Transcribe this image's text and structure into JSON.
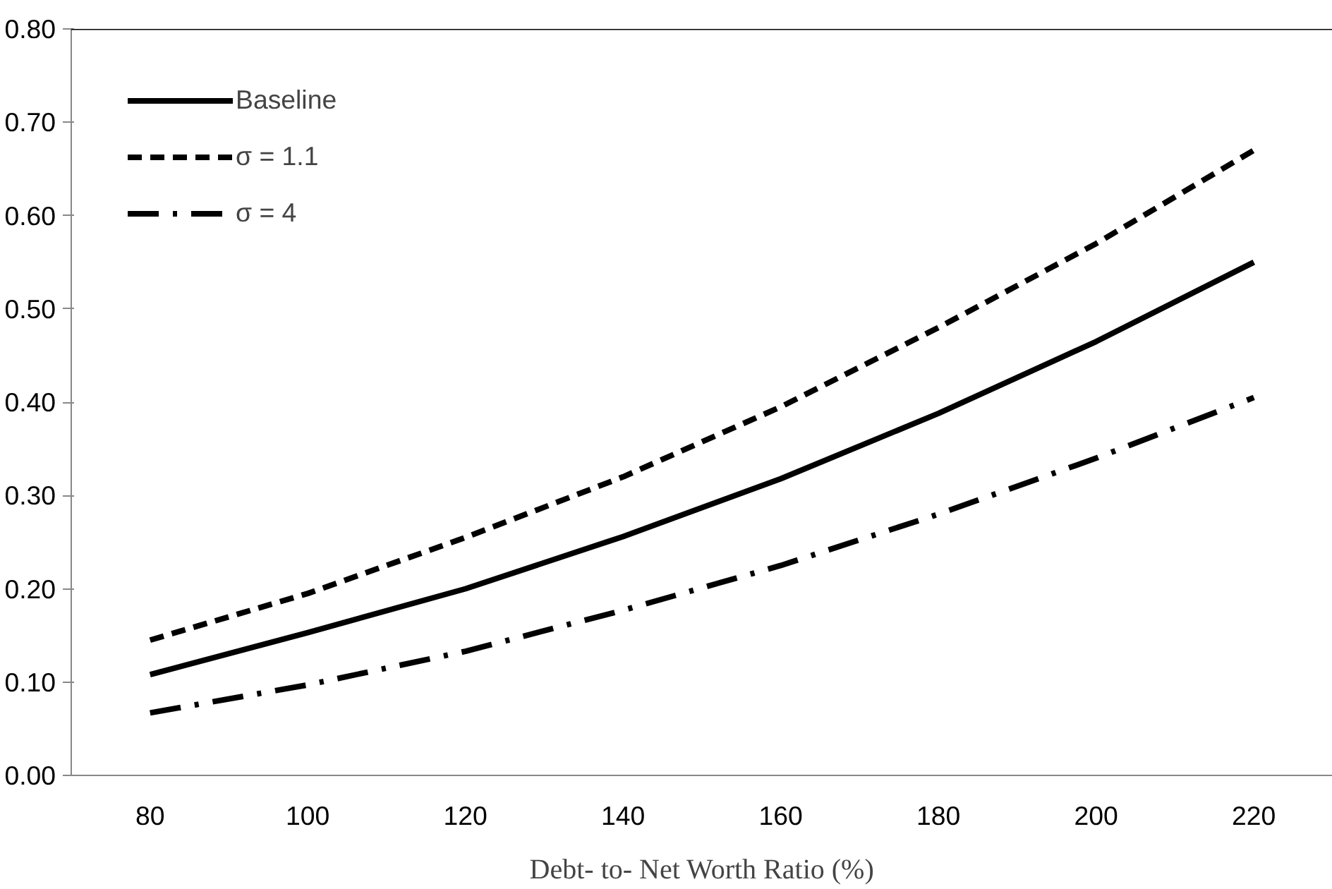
{
  "chart_data": {
    "type": "line",
    "xlabel": "Debt- to- Net Worth Ratio (%)",
    "categories": [
      "80",
      "100",
      "120",
      "140",
      "160",
      "180",
      "200",
      "220"
    ],
    "ylim": [
      0,
      0.8
    ],
    "yticks": [
      {
        "value": 0,
        "label": "0.00"
      },
      {
        "value": 0.1,
        "label": "0.10"
      },
      {
        "value": 0.2,
        "label": "0.20"
      },
      {
        "value": 0.3,
        "label": "0.30"
      },
      {
        "value": 0.4,
        "label": "0.40"
      },
      {
        "value": 0.5,
        "label": "0.50"
      },
      {
        "value": 0.6,
        "label": "0.60"
      },
      {
        "value": 0.7,
        "label": "0.70"
      },
      {
        "value": 0.8,
        "label": "0.80"
      }
    ],
    "grid": false,
    "legend": "top left",
    "series": [
      {
        "name": "Baseline",
        "color": "#000000",
        "line_style": "solid",
        "values": [
          0.108,
          0.153,
          0.2,
          0.256,
          0.318,
          0.388,
          0.465,
          0.55
        ]
      },
      {
        "name": "σ = 1.1",
        "color": "#000000",
        "line_style": "dashed",
        "values": [
          0.145,
          0.195,
          0.255,
          0.32,
          0.395,
          0.48,
          0.57,
          0.67
        ]
      },
      {
        "name": "σ = 4",
        "color": "#000000",
        "line_style": "dashdot",
        "values": [
          0.067,
          0.097,
          0.133,
          0.177,
          0.225,
          0.28,
          0.34,
          0.405
        ]
      }
    ]
  }
}
